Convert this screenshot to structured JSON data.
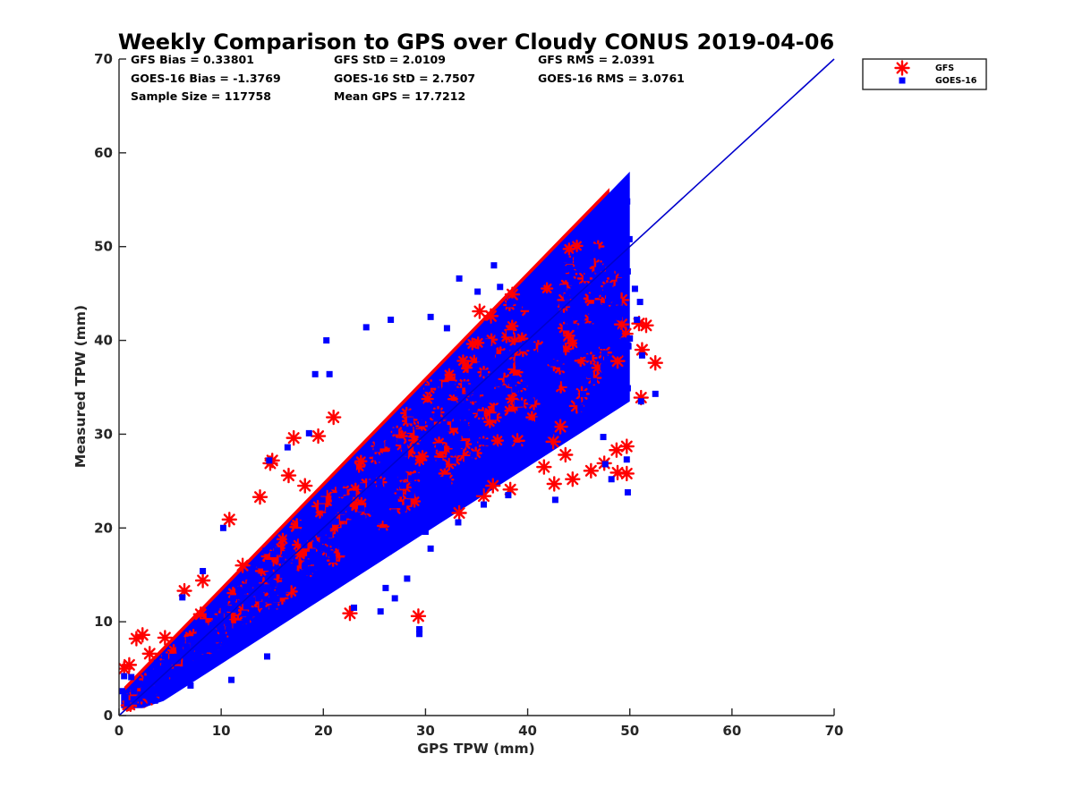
{
  "chart_data": {
    "type": "scatter",
    "title": "Weekly Comparison to GPS over Cloudy CONUS 2019-04-06",
    "xlabel": "GPS TPW (mm)",
    "ylabel": "Measured TPW (mm)",
    "xlim": [
      0,
      70
    ],
    "ylim": [
      0,
      70
    ],
    "xticks": [
      "0",
      "10",
      "20",
      "30",
      "40",
      "50",
      "60",
      "70"
    ],
    "yticks": [
      "0",
      "10",
      "20",
      "30",
      "40",
      "50",
      "60",
      "70"
    ],
    "grid": false,
    "legend_position": "outside-top-right",
    "stats": [
      [
        "GFS Bias = 0.33801",
        "GFS StD = 2.0109",
        "GFS RMS = 2.0391"
      ],
      [
        "GOES-16 Bias = -1.3769",
        "GOES-16 StD = 2.7507",
        "GOES-16 RMS = 3.0761"
      ],
      [
        "Sample Size = 117758",
        "Mean GPS = 17.7212"
      ]
    ],
    "reference_line": {
      "type": "one-to-one",
      "x": [
        0,
        70
      ],
      "y": [
        0,
        70
      ],
      "color": "#0000cc"
    },
    "series": [
      {
        "name": "GFS",
        "marker": "asterisk",
        "color": "#ff0000",
        "dense_band": {
          "x_range": [
            0.5,
            48
          ],
          "y_low_slope": 0.78,
          "y_high_slope": 1.12,
          "y_offset": 1.0
        },
        "points": [
          [
            0.5,
            5
          ],
          [
            1.0,
            5.4
          ],
          [
            1.7,
            8.2
          ],
          [
            2.3,
            8.6
          ],
          [
            2.2,
            2
          ],
          [
            3.2,
            1.9
          ],
          [
            6.4,
            13.3
          ],
          [
            8.2,
            14.4
          ],
          [
            10.8,
            20.9
          ],
          [
            13.8,
            23.3
          ],
          [
            14.8,
            26.9
          ],
          [
            15.0,
            27.2
          ],
          [
            17.1,
            29.6
          ],
          [
            16.6,
            25.6
          ],
          [
            18.2,
            24.5
          ],
          [
            21.0,
            31.8
          ],
          [
            22.6,
            10.9
          ],
          [
            24.1,
            21.8
          ],
          [
            29.3,
            10.6
          ],
          [
            33.3,
            21.6
          ],
          [
            35.7,
            23.4
          ],
          [
            36.6,
            24.5
          ],
          [
            38.3,
            24.1
          ],
          [
            41.6,
            26.5
          ],
          [
            42.6,
            24.7
          ],
          [
            43.7,
            27.8
          ],
          [
            44.4,
            25.2
          ],
          [
            46.2,
            26.1
          ],
          [
            47.5,
            26.9
          ],
          [
            48.7,
            28.3
          ],
          [
            49.7,
            28.7
          ],
          [
            48.8,
            25.9
          ],
          [
            49.7,
            25.8
          ],
          [
            51.1,
            33.9
          ],
          [
            52.5,
            37.6
          ],
          [
            51.2,
            39.0
          ],
          [
            50.9,
            41.8
          ],
          [
            51.6,
            41.6
          ],
          [
            49.2,
            41.7
          ],
          [
            49.6,
            40.7
          ],
          [
            49.2,
            44.3
          ],
          [
            48.5,
            46.6
          ],
          [
            45.6,
            46.6
          ],
          [
            38.5,
            44.9
          ],
          [
            36.4,
            42.6
          ],
          [
            35.3,
            43.1
          ],
          [
            43.6,
            44.3
          ],
          [
            48.8,
            37.8
          ],
          [
            47.5,
            38.7
          ],
          [
            46.5,
            36.0
          ],
          [
            44.8,
            33.0
          ],
          [
            43.2,
            30.8
          ],
          [
            42.5,
            29.2
          ],
          [
            39.0,
            29.3
          ],
          [
            44.0,
            40.5
          ],
          [
            45.3,
            34.3
          ],
          [
            19.5,
            29.8
          ],
          [
            12.1,
            16.0
          ],
          [
            8.0,
            10.8
          ],
          [
            4.5,
            8.3
          ],
          [
            3.0,
            6.6
          ]
        ]
      },
      {
        "name": "GOES-16",
        "marker": "square",
        "color": "#0000ff",
        "dense_band": {
          "x_range": [
            0.2,
            50
          ],
          "y_low_slope": 0.7,
          "y_high_slope": 1.12,
          "y_offset": 0.5
        },
        "points": [
          [
            0.3,
            2.6
          ],
          [
            0.8,
            1.3
          ],
          [
            1.5,
            1.5
          ],
          [
            1.2,
            4.1
          ],
          [
            2.5,
            2.3
          ],
          [
            4.0,
            2.4
          ],
          [
            5.5,
            3.0
          ],
          [
            7.0,
            3.2
          ],
          [
            11.0,
            3.8
          ],
          [
            14.5,
            6.3
          ],
          [
            23.0,
            11.5
          ],
          [
            25.6,
            11.1
          ],
          [
            27.0,
            12.5
          ],
          [
            26.1,
            13.6
          ],
          [
            29.4,
            9.2
          ],
          [
            29.4,
            8.7
          ],
          [
            28.2,
            14.6
          ],
          [
            30.5,
            17.8
          ],
          [
            30.0,
            19.6
          ],
          [
            33.2,
            20.6
          ],
          [
            35.7,
            22.5
          ],
          [
            38.1,
            23.5
          ],
          [
            42.7,
            23.0
          ],
          [
            49.8,
            23.8
          ],
          [
            49.7,
            27.3
          ],
          [
            48.2,
            25.2
          ],
          [
            47.6,
            26.8
          ],
          [
            47.4,
            29.7
          ],
          [
            49.8,
            34.9
          ],
          [
            51.1,
            33.5
          ],
          [
            52.5,
            34.3
          ],
          [
            51.2,
            38.4
          ],
          [
            50.0,
            40.2
          ],
          [
            50.7,
            42.2
          ],
          [
            51.0,
            44.1
          ],
          [
            50.5,
            45.5
          ],
          [
            49.0,
            43.4
          ],
          [
            48.3,
            46.8
          ],
          [
            47.8,
            48.5
          ],
          [
            44.1,
            48.5
          ],
          [
            43.4,
            47.3
          ],
          [
            45.9,
            47.1
          ],
          [
            36.7,
            48.0
          ],
          [
            40.2,
            46.3
          ],
          [
            37.3,
            45.7
          ],
          [
            35.1,
            45.2
          ],
          [
            33.3,
            46.6
          ],
          [
            30.5,
            42.5
          ],
          [
            26.6,
            42.2
          ],
          [
            24.2,
            41.4
          ],
          [
            20.6,
            36.4
          ],
          [
            19.2,
            36.4
          ],
          [
            18.6,
            30.1
          ],
          [
            16.5,
            28.6
          ],
          [
            14.7,
            27.2
          ],
          [
            10.2,
            20.0
          ],
          [
            8.2,
            15.4
          ],
          [
            6.2,
            12.6
          ],
          [
            0.5,
            4.2
          ],
          [
            20.3,
            40.0
          ],
          [
            32.1,
            41.3
          ],
          [
            43.5,
            45.6
          ],
          [
            45.1,
            44.8
          ]
        ]
      }
    ]
  }
}
